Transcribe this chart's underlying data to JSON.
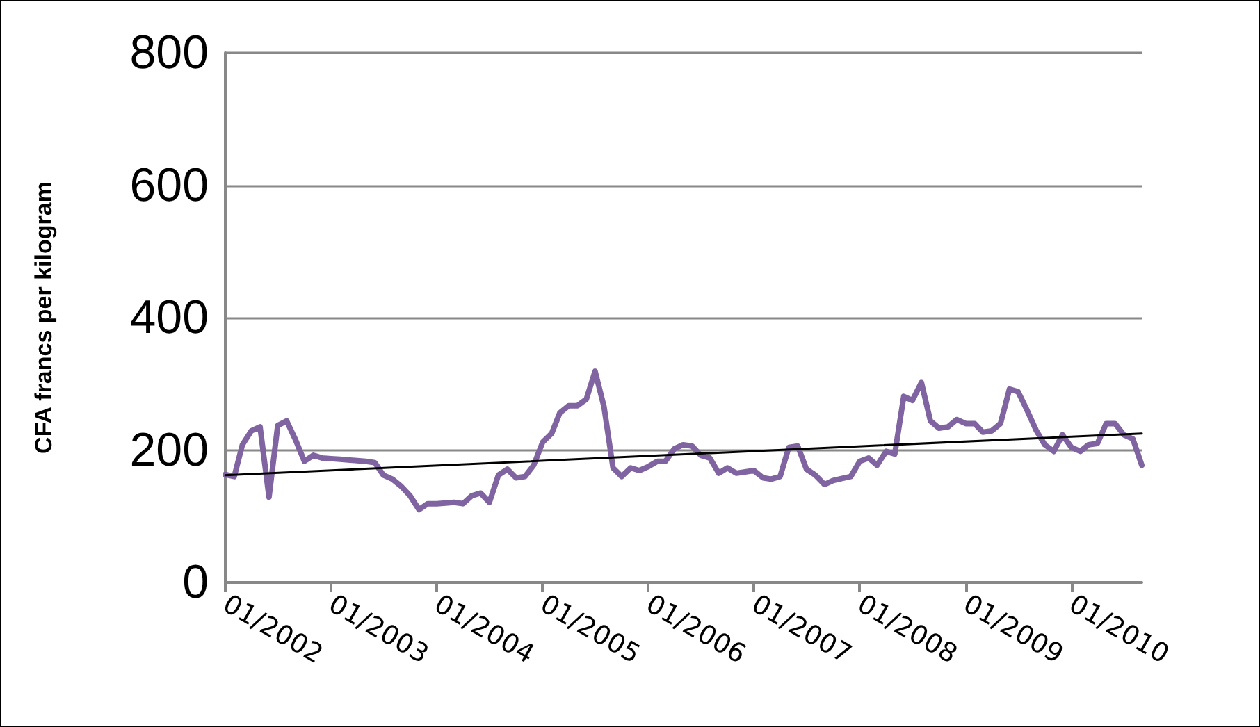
{
  "chart_data": {
    "type": "line",
    "ylabel": "CFA francs per kilogram",
    "x": [
      "2002-01",
      "2002-02",
      "2002-03",
      "2002-04",
      "2002-05",
      "2002-06",
      "2002-07",
      "2002-08",
      "2002-09",
      "2002-10",
      "2002-11",
      "2002-12",
      "2003-01",
      "2003-02",
      "2003-03",
      "2003-04",
      "2003-05",
      "2003-06",
      "2003-07",
      "2003-08",
      "2003-09",
      "2003-10",
      "2003-11",
      "2003-12",
      "2004-01",
      "2004-02",
      "2004-03",
      "2004-04",
      "2004-05",
      "2004-06",
      "2004-07",
      "2004-08",
      "2004-09",
      "2004-10",
      "2004-11",
      "2004-12",
      "2005-01",
      "2005-02",
      "2005-03",
      "2005-04",
      "2005-05",
      "2005-06",
      "2005-07",
      "2005-08",
      "2005-09",
      "2005-10",
      "2005-11",
      "2005-12",
      "2006-01",
      "2006-02",
      "2006-03",
      "2006-04",
      "2006-05",
      "2006-06",
      "2006-07",
      "2006-08",
      "2006-09",
      "2006-10",
      "2006-11",
      "2006-12",
      "2007-01",
      "2007-02",
      "2007-03",
      "2007-04",
      "2007-05",
      "2007-06",
      "2007-07",
      "2007-08",
      "2007-09",
      "2007-10",
      "2007-11",
      "2007-12",
      "2008-01",
      "2008-02",
      "2008-03",
      "2008-04",
      "2008-05",
      "2008-06",
      "2008-07",
      "2008-08",
      "2008-09",
      "2008-10",
      "2008-11",
      "2008-12",
      "2009-01",
      "2009-02",
      "2009-03",
      "2009-04",
      "2009-05",
      "2009-06",
      "2009-07",
      "2009-08",
      "2009-09",
      "2009-10",
      "2009-11",
      "2009-12",
      "2010-01",
      "2010-02",
      "2010-03",
      "2010-04",
      "2010-05",
      "2010-06",
      "2010-07",
      "2010-08",
      "2010-09"
    ],
    "series": [
      {
        "color": "#8064a2",
        "values": [
          163,
          160,
          208,
          229,
          235,
          129,
          237,
          244,
          215,
          183,
          192,
          188,
          187,
          186,
          185,
          184,
          183,
          181,
          162,
          156,
          145,
          131,
          110,
          119,
          119,
          120,
          121,
          119,
          131,
          135,
          121,
          162,
          171,
          158,
          160,
          177,
          212,
          225,
          256,
          267,
          267,
          277,
          319,
          265,
          173,
          160,
          173,
          169,
          175,
          183,
          183,
          202,
          208,
          206,
          192,
          188,
          165,
          173,
          165,
          167,
          169,
          158,
          156,
          160,
          204,
          206,
          171,
          162,
          148,
          154,
          157,
          160,
          183,
          188,
          177,
          198,
          194,
          281,
          275,
          302,
          244,
          233,
          235,
          246,
          240,
          240,
          227,
          229,
          240,
          292,
          288,
          260,
          230,
          208,
          198,
          223,
          204,
          198,
          208,
          210,
          240,
          240,
          223,
          217,
          177
        ]
      },
      {
        "type": "line",
        "color": "#000000",
        "x": [
          "2002-01",
          "2010-09"
        ],
        "values": [
          162,
          225
        ]
      }
    ],
    "xlim": [
      "2002-01",
      "2010-09"
    ],
    "xticks": [
      {
        "value": "2002-01",
        "label": "01/2002"
      },
      {
        "value": "2003-01",
        "label": "01/2003"
      },
      {
        "value": "2004-01",
        "label": "01/2004"
      },
      {
        "value": "2005-01",
        "label": "01/2005"
      },
      {
        "value": "2006-01",
        "label": "01/2006"
      },
      {
        "value": "2007-01",
        "label": "01/2007"
      },
      {
        "value": "2008-01",
        "label": "01/2008"
      },
      {
        "value": "2009-01",
        "label": "01/2009"
      },
      {
        "value": "2010-01",
        "label": "01/2010"
      }
    ],
    "ylim": [
      0,
      800
    ],
    "yticks": [
      0,
      200,
      400,
      600,
      800
    ],
    "grid": "y",
    "marker": "none",
    "line_style": "solid"
  }
}
